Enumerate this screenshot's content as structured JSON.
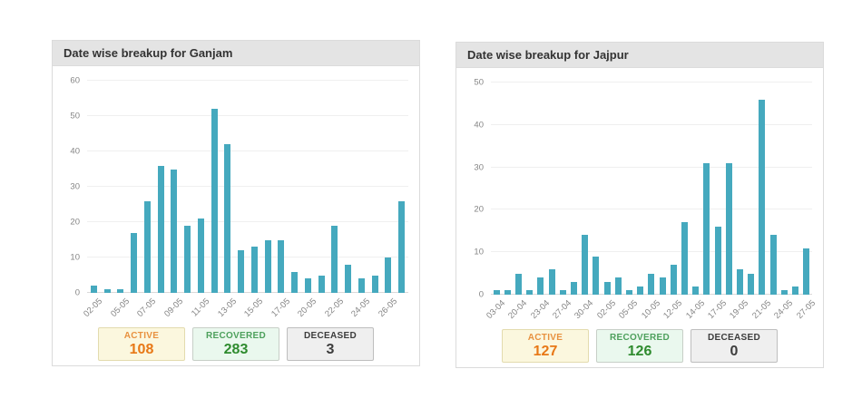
{
  "panels": [
    {
      "title": "Date wise breakup for Ganjam",
      "stats": [
        {
          "label": "ACTIVE",
          "value": "108"
        },
        {
          "label": "RECOVERED",
          "value": "283"
        },
        {
          "label": "DECEASED",
          "value": "3"
        }
      ]
    },
    {
      "title": "Date wise breakup for Jajpur",
      "stats": [
        {
          "label": "ACTIVE",
          "value": "127"
        },
        {
          "label": "RECOVERED",
          "value": "126"
        },
        {
          "label": "DECEASED",
          "value": "0"
        }
      ]
    }
  ],
  "chart_data": [
    {
      "type": "bar",
      "title": "Date wise breakup for Ganjam",
      "categories": [
        "02-05",
        "",
        "05-05",
        "",
        "07-05",
        "",
        "09-05",
        "",
        "11-05",
        "",
        "13-05",
        "",
        "15-05",
        "",
        "17-05",
        "",
        "20-05",
        "",
        "22-05",
        "",
        "24-05",
        "",
        "26-05",
        ""
      ],
      "values": [
        2,
        1,
        1,
        17,
        26,
        36,
        35,
        19,
        21,
        52,
        42,
        12,
        13,
        15,
        15,
        6,
        4,
        5,
        19,
        8,
        4,
        5,
        10,
        26
      ],
      "xlabel": "",
      "ylabel": "",
      "ylim": [
        0,
        60
      ],
      "yticks": [
        0,
        10,
        20,
        30,
        40,
        50,
        60
      ],
      "grid": "horizontal",
      "legend": "none",
      "x_tick_rotation": -45
    },
    {
      "type": "bar",
      "title": "Date wise breakup for Jajpur",
      "categories": [
        "03-04",
        "",
        "20-04",
        "",
        "23-04",
        "",
        "27-04",
        "",
        "30-04",
        "",
        "02-05",
        "",
        "05-05",
        "",
        "10-05",
        "",
        "12-05",
        "",
        "14-05",
        "",
        "17-05",
        "",
        "19-05",
        "",
        "21-05",
        "",
        "24-05",
        "",
        "27-05"
      ],
      "values": [
        1,
        1,
        5,
        1,
        4,
        6,
        1,
        3,
        14,
        9,
        3,
        4,
        1,
        2,
        5,
        4,
        7,
        17,
        2,
        31,
        16,
        31,
        6,
        5,
        46,
        14,
        1,
        2,
        11
      ],
      "xlabel": "",
      "ylabel": "",
      "ylim": [
        0,
        50
      ],
      "yticks": [
        0,
        10,
        20,
        30,
        40,
        50
      ],
      "grid": "horizontal",
      "legend": "none",
      "x_tick_rotation": -45
    }
  ],
  "colors": {
    "bar": "#45A9BE",
    "panel_border": "#DBDBDB",
    "header_bg": "#E4E4E4",
    "header_text": "#333333",
    "grid": "#EFEFEF",
    "tick_text": "#858585",
    "active_bg": "#FBF7DE",
    "active_border": "#E3DBAE",
    "active_label": "#E8913F",
    "active_value": "#E87816",
    "recovered_bg": "#EAF8EE",
    "recovered_border": "#C7CFC7",
    "recovered_label": "#4DA05C",
    "recovered_value": "#2E8B2E",
    "deceased_bg": "#EFEFEF",
    "deceased_border": "#BEBEBE",
    "deceased_label": "#3C3C3C",
    "deceased_value": "#3C3C3C"
  }
}
